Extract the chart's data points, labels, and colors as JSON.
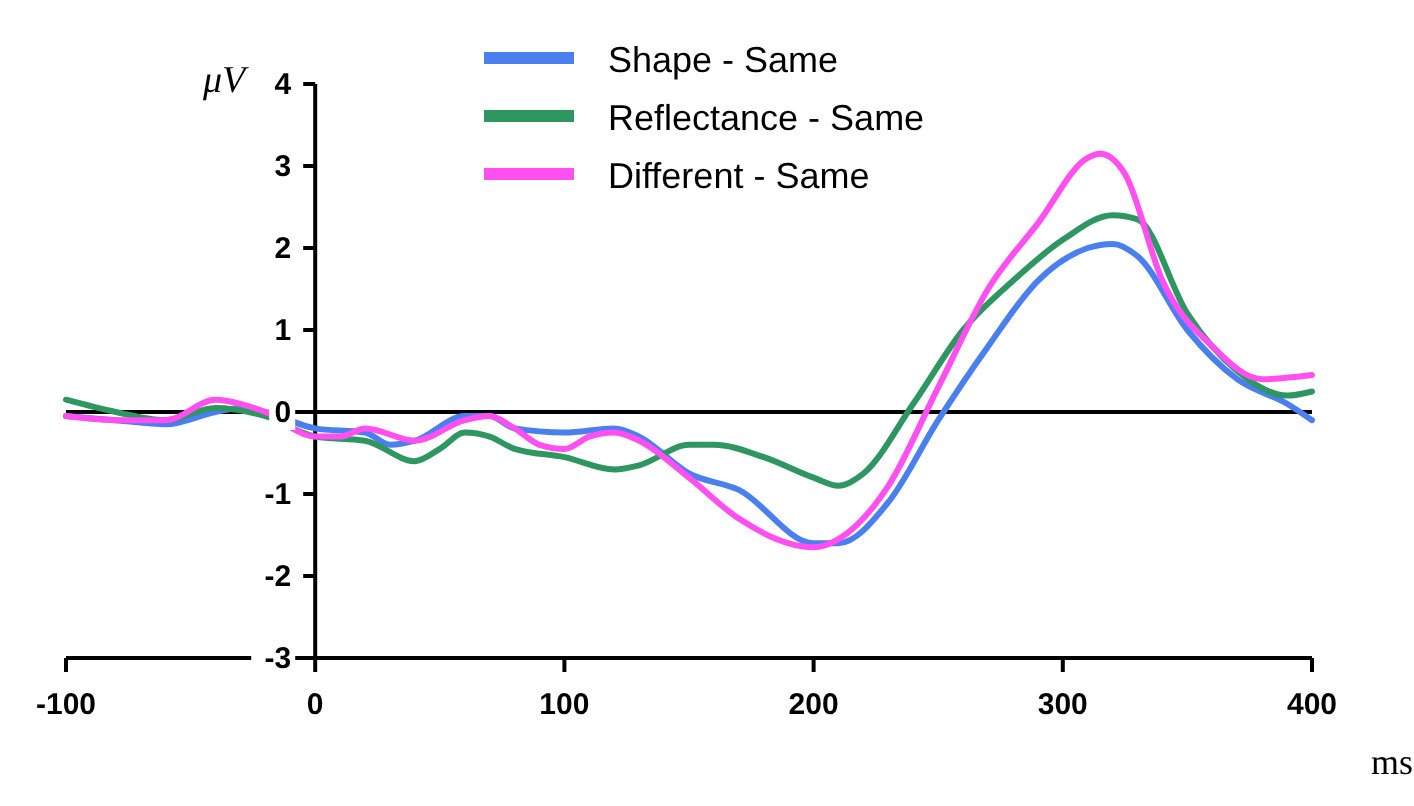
{
  "chart_data": {
    "type": "line",
    "xlabel": "ms",
    "ylabel": "μV",
    "xlim": [
      -100,
      400
    ],
    "xticks": [
      -100,
      0,
      100,
      200,
      300,
      400
    ],
    "ylim": [
      -3,
      4
    ],
    "yticks": [
      -3,
      -2,
      -1,
      0,
      1,
      2,
      3,
      4
    ],
    "legend": "top",
    "grid": false,
    "ref_lines": [
      {
        "axis": "y",
        "value": 0
      }
    ],
    "series": [
      {
        "name": "Shape - Same",
        "color": "#4a7ff0",
        "x": [
          -100,
          -80,
          -60,
          -40,
          -30,
          -20,
          0,
          20,
          30,
          40,
          60,
          70,
          80,
          100,
          120,
          130,
          150,
          170,
          200,
          210,
          230,
          250,
          270,
          290,
          310,
          320,
          330,
          350,
          370,
          390,
          400
        ],
        "values": [
          -0.05,
          -0.1,
          -0.15,
          0,
          0.05,
          0,
          -0.2,
          -0.25,
          -0.4,
          -0.35,
          -0.05,
          -0.05,
          -0.2,
          -0.25,
          -0.2,
          -0.3,
          -0.75,
          -0.95,
          -1.6,
          -1.6,
          -1.1,
          -0.1,
          0.8,
          1.6,
          2,
          2.05,
          1.9,
          1,
          0.4,
          0.1,
          -0.1
        ]
      },
      {
        "name": "Reflectance - Same",
        "color": "#2e9660",
        "x": [
          -100,
          -80,
          -60,
          -40,
          -20,
          0,
          20,
          40,
          50,
          60,
          70,
          80,
          100,
          120,
          130,
          150,
          160,
          180,
          200,
          210,
          220,
          240,
          260,
          280,
          300,
          320,
          330,
          350,
          370,
          390,
          400
        ],
        "values": [
          0.15,
          0,
          -0.1,
          0.05,
          -0.05,
          -0.3,
          -0.35,
          -0.6,
          -0.45,
          -0.25,
          -0.3,
          -0.45,
          -0.55,
          -0.7,
          -0.65,
          -0.4,
          -0.4,
          -0.55,
          -0.8,
          -0.9,
          -0.75,
          0.1,
          1,
          1.6,
          2.1,
          2.4,
          2.35,
          1.2,
          0.5,
          0.2,
          0.25
        ]
      },
      {
        "name": "Different - Same",
        "color": "#ff4ff0",
        "x": [
          -100,
          -80,
          -60,
          -40,
          -30,
          -20,
          0,
          10,
          20,
          40,
          60,
          70,
          80,
          90,
          100,
          110,
          120,
          130,
          150,
          170,
          200,
          210,
          230,
          250,
          270,
          290,
          310,
          315,
          325,
          340,
          360,
          380,
          400
        ],
        "values": [
          -0.05,
          -0.1,
          -0.1,
          0.15,
          0.1,
          0,
          -0.3,
          -0.3,
          -0.2,
          -0.35,
          -0.1,
          -0.05,
          -0.2,
          -0.4,
          -0.45,
          -0.3,
          -0.25,
          -0.35,
          -0.8,
          -1.3,
          -1.65,
          -1.55,
          -0.9,
          0.3,
          1.5,
          2.3,
          3.1,
          3.15,
          2.9,
          1.6,
          0.8,
          0.4,
          0.45
        ]
      }
    ]
  }
}
